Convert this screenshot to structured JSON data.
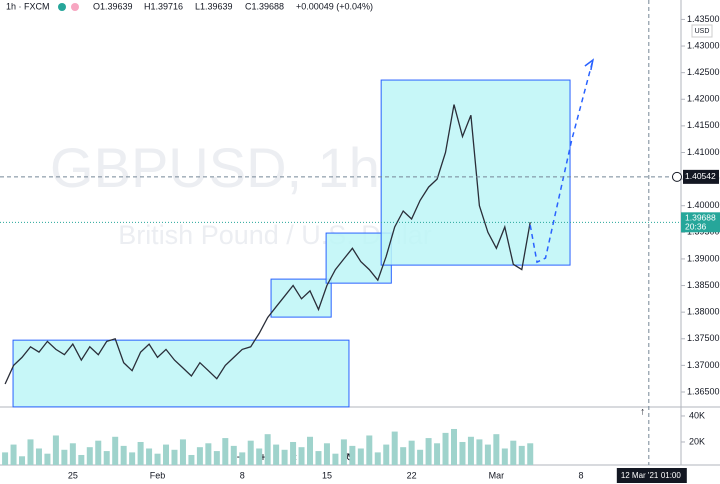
{
  "header": {
    "symbol": "1h · FXCM",
    "open": "O1.39639",
    "high": "H1.39716",
    "low": "L1.39639",
    "close": "C1.39688",
    "change": "+0.00049 (+0.04%)",
    "currency": "USD"
  },
  "watermark": {
    "symbol": "GBPUSD, 1h",
    "description": "British Pound / U.S. Dollar"
  },
  "chart_data": {
    "type": "line",
    "categories": [
      null,
      null,
      null,
      null,
      null,
      null,
      null,
      null,
      "25",
      null,
      null,
      null,
      null,
      null,
      null,
      null,
      null,
      null,
      "Feb",
      null,
      null,
      null,
      null,
      null,
      null,
      null,
      null,
      null,
      "8",
      null,
      null,
      null,
      null,
      null,
      null,
      null,
      null,
      null,
      "15",
      null,
      null,
      null,
      null,
      null,
      null,
      null,
      null,
      null,
      "22",
      null,
      null,
      null,
      null,
      null,
      null,
      null,
      null,
      null,
      "Mar",
      null,
      null,
      null,
      null,
      null,
      null,
      null,
      null,
      null,
      "8",
      null
    ],
    "xlim": [
      -0.6,
      79.8
    ],
    "series": [
      {
        "name": "GBPUSD",
        "color": "#2a2e39",
        "values": [
          1.3665,
          1.37,
          1.3715,
          1.3735,
          1.3725,
          1.3745,
          1.373,
          1.372,
          1.374,
          1.371,
          1.3735,
          1.372,
          1.3745,
          1.375,
          1.3705,
          1.369,
          1.3725,
          1.374,
          1.3715,
          1.373,
          1.371,
          1.3695,
          1.368,
          1.3705,
          1.369,
          1.3675,
          1.37,
          1.3715,
          1.373,
          1.3735,
          1.376,
          1.379,
          1.381,
          1.383,
          1.385,
          1.3825,
          1.384,
          1.3805,
          1.385,
          1.388,
          1.39,
          1.392,
          1.3895,
          1.388,
          1.386,
          1.3905,
          1.396,
          1.399,
          1.3975,
          1.401,
          1.4035,
          1.405,
          1.41,
          1.419,
          1.413,
          1.417,
          1.4,
          1.395,
          1.392,
          1.396,
          1.389,
          1.388,
          1.3969,
          null,
          null,
          null,
          null,
          null,
          null,
          null
        ]
      }
    ],
    "ylim": [
      1.36218,
      1.43865
    ],
    "yticks": [
      {
        "value": 1.365,
        "label": "1.36500"
      },
      {
        "value": 1.37,
        "label": "1.37000"
      },
      {
        "value": 1.375,
        "label": "1.37500"
      },
      {
        "value": 1.38,
        "label": "1.38000"
      },
      {
        "value": 1.385,
        "label": "1.38500"
      },
      {
        "value": 1.39,
        "label": "1.39000"
      },
      {
        "value": 1.395,
        "label": "1.39500"
      },
      {
        "value": 1.4,
        "label": "1.40000"
      },
      {
        "value": 1.405,
        "label": "1.40500"
      },
      {
        "value": 1.41,
        "label": "1.41000"
      },
      {
        "value": 1.415,
        "label": "1.41500"
      },
      {
        "value": 1.42,
        "label": "1.42000"
      },
      {
        "value": 1.425,
        "label": "1.42500"
      },
      {
        "value": 1.43,
        "label": "1.43000"
      },
      {
        "value": 1.435,
        "label": "1.43500"
      }
    ],
    "rectangles": [
      {
        "x": [
          0.94,
          40.6
        ],
        "y": [
          1.3622,
          1.37474
        ]
      },
      {
        "x": [
          31.4,
          38.5
        ],
        "y": [
          1.37907,
          1.38621
        ]
      },
      {
        "x": [
          37.9,
          45.6
        ],
        "y": [
          1.38545,
          1.39486
        ]
      },
      {
        "x": [
          44.4,
          66.7
        ],
        "y": [
          1.38884,
          1.42361
        ]
      }
    ],
    "rectangle_color": "#2962ff",
    "projection": {
      "x": [
        62,
        62.8,
        63.8,
        66.9,
        69.4
      ],
      "y": [
        1.39635,
        1.3894,
        1.39015,
        1.41233,
        1.42737
      ]
    },
    "last_price": {
      "value": 1.39688,
      "label": "1.39688",
      "countdown": "20:36",
      "color": "#26a69a"
    },
    "crosshair": {
      "x": 76,
      "y": 1.40542,
      "price_label": "1.40542",
      "date_label": "12 Mar '21",
      "time_label": "01:00"
    },
    "volume": {
      "color": "#9fd3cc",
      "ylim": [
        2.3,
        46.9
      ],
      "yticks": [
        {
          "value": 20,
          "label": "20K"
        },
        {
          "value": 40,
          "label": "40K"
        }
      ],
      "values": [
        12,
        18,
        9,
        22,
        15,
        11,
        25,
        14,
        19,
        10,
        16,
        21,
        13,
        24,
        17,
        12,
        20,
        15,
        11,
        18,
        14,
        22,
        10,
        16,
        19,
        13,
        23,
        17,
        12,
        21,
        15,
        26,
        18,
        14,
        20,
        16,
        24,
        13,
        19,
        11,
        22,
        17,
        15,
        25,
        12,
        18,
        28,
        16,
        21,
        14,
        23,
        19,
        27,
        30,
        20,
        24,
        22,
        18,
        26,
        15,
        21,
        17,
        19,
        null,
        null,
        null,
        null,
        null,
        null,
        null
      ]
    }
  }
}
